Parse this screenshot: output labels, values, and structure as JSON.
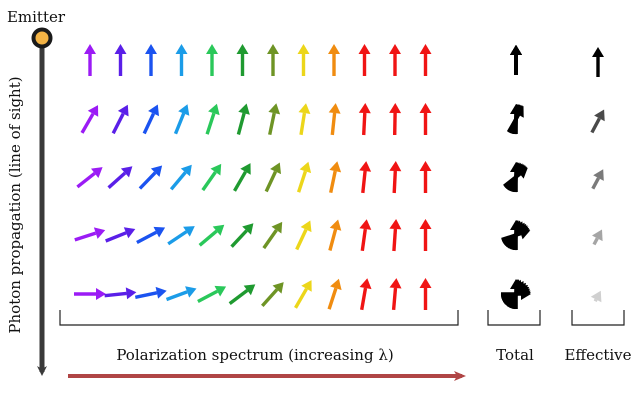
{
  "labels": {
    "emitter": "Emitter",
    "propagation_axis": "Photon propagation (line of sight)",
    "spectrum": "Polarization spectrum (increasing λ)",
    "total": "Total",
    "effective": "Effective"
  },
  "colors": {
    "spectrum": [
      "#9b1bf5",
      "#5a1fe8",
      "#1b53f0",
      "#1b9ce8",
      "#2ac85a",
      "#1f9a30",
      "#6e9425",
      "#ecd61a",
      "#f08c10",
      "#f01414",
      "#f01414",
      "#f01414"
    ],
    "emitter_fill": "#f3b345",
    "emitter_stroke": "#1a1a1a",
    "axis": "#3a3a3a",
    "spectrum_arrow": "#b04545",
    "total": "#000000",
    "effective": [
      "#000000",
      "#4a4a4a",
      "#7a7a7a",
      "#a5a5a5",
      "#d0d0d0"
    ]
  },
  "rows": [
    {
      "angles": [
        0,
        0,
        0,
        0,
        0,
        0,
        0,
        0,
        0,
        0,
        0,
        0
      ]
    },
    {
      "angles": [
        30,
        27,
        25,
        22,
        18,
        15,
        12,
        9,
        6,
        3,
        1,
        0
      ]
    },
    {
      "angles": [
        52,
        48,
        44,
        40,
        35,
        30,
        25,
        18,
        12,
        6,
        3,
        0
      ]
    },
    {
      "angles": [
        72,
        68,
        62,
        56,
        50,
        43,
        35,
        25,
        15,
        8,
        4,
        0
      ]
    },
    {
      "angles": [
        90,
        84,
        78,
        70,
        62,
        53,
        42,
        30,
        18,
        10,
        5,
        0
      ]
    }
  ]
}
